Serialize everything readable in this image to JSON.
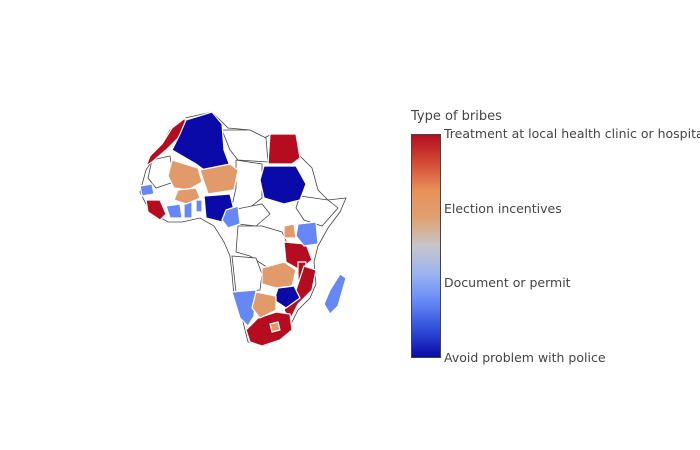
{
  "legend": {
    "title": "Type of bribes",
    "ticks": [
      {
        "label": "Treatment at local health clinic or hospital",
        "level": 1.0
      },
      {
        "label": "Election incentives",
        "level": 0.667
      },
      {
        "label": "Document or permit",
        "level": 0.333
      },
      {
        "label": "Avoid problem with police",
        "level": 0.0
      }
    ],
    "colorscale": [
      "#0a0aa8",
      "#2f4ed8",
      "#6688f7",
      "#9ab4f0",
      "#c6c6cc",
      "#e0a070",
      "#e8905a",
      "#d44a35",
      "#b50d1f"
    ]
  },
  "colors": {
    "police": "#0a0aa8",
    "document": "#6688f7",
    "election": "#e39a6a",
    "health": "#b50d1f",
    "nodata_fill": "#ffffff",
    "border": "#444444"
  },
  "countries_shown": {
    "health": [
      "Morocco",
      "Egypt",
      "Sierra Leone",
      "Tanzania",
      "Malawi",
      "Mozambique",
      "South Africa"
    ],
    "police": [
      "Algeria",
      "Sudan",
      "Nigeria",
      "Zimbabwe"
    ],
    "document": [
      "Senegal",
      "Liberia",
      "Ghana",
      "Benin",
      "Cameroon",
      "Kenya",
      "Namibia",
      "Madagascar"
    ],
    "election": [
      "Mali",
      "Burkina Faso",
      "Niger",
      "Burundi",
      "Zambia",
      "Botswana",
      "Lesotho"
    ]
  }
}
